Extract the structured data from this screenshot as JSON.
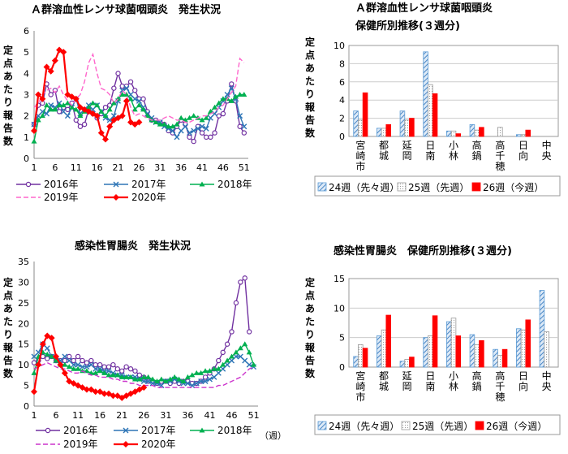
{
  "charts": [
    {
      "id": "strep_trend",
      "type": "line",
      "title": "Ａ群溶血性レンサ球菌咽頭炎　発生状況",
      "ylabel": "定点あたり報告数",
      "x_ticks": [
        1,
        6,
        11,
        16,
        21,
        26,
        31,
        36,
        41,
        46,
        51
      ],
      "xlim": [
        1,
        52
      ],
      "ylim": [
        0,
        6
      ],
      "y_ticks": [
        0,
        1,
        2,
        3,
        4,
        5,
        6
      ],
      "series": [
        {
          "name": "2016年",
          "color": "#7030a0",
          "marker": "circle-open",
          "values": [
            1.6,
            2.5,
            2.6,
            3.5,
            3.0,
            3.2,
            2.2,
            2.4,
            2.3,
            2.6,
            1.8,
            1.5,
            1.6,
            2.3,
            2.1,
            1.9,
            2.1,
            2.4,
            2.5,
            3.3,
            4.0,
            3.4,
            3.4,
            3.6,
            3.2,
            2.8,
            2.8,
            2.2,
            1.8,
            1.8,
            1.7,
            1.6,
            1.3,
            1.2,
            1.5,
            1.8,
            1.6,
            1.0,
            0.8,
            1.5,
            1.2,
            1.0,
            1.0,
            1.2,
            2.0,
            2.1,
            2.7,
            3.5,
            2.7,
            1.5,
            1.2
          ]
        },
        {
          "name": "2017年",
          "color": "#2e75b6",
          "marker": "x",
          "values": [
            1.6,
            2.0,
            2.2,
            2.1,
            2.5,
            2.4,
            2.6,
            2.2,
            2.0,
            2.4,
            2.8,
            2.1,
            2.3,
            2.5,
            2.3,
            2.5,
            2.2,
            1.9,
            1.8,
            2.0,
            2.7,
            3.2,
            3.3,
            3.0,
            2.8,
            2.7,
            2.4,
            2.1,
            1.9,
            1.7,
            1.7,
            1.5,
            1.4,
            1.3,
            1.0,
            1.3,
            1.5,
            1.2,
            1.3,
            1.4,
            1.5,
            1.4,
            1.9,
            2.1,
            2.4,
            2.7,
            3.0,
            3.3,
            2.8,
            2.0,
            1.5
          ]
        },
        {
          "name": "2018年",
          "color": "#00b050",
          "marker": "triangle",
          "values": [
            0.8,
            1.8,
            2.0,
            2.5,
            2.3,
            2.3,
            2.5,
            2.5,
            2.6,
            2.4,
            2.3,
            2.0,
            2.2,
            2.4,
            2.6,
            2.5,
            2.2,
            2.0,
            2.3,
            2.6,
            2.8,
            3.0,
            3.0,
            2.8,
            2.3,
            2.5,
            2.3,
            2.0,
            1.8,
            1.7,
            1.6,
            1.6,
            1.5,
            1.5,
            1.6,
            1.9,
            1.8,
            1.9,
            2.0,
            1.9,
            1.8,
            1.9,
            2.2,
            2.4,
            2.6,
            2.8,
            2.8,
            2.7,
            2.9,
            3.0,
            3.0
          ]
        },
        {
          "name": "2019年",
          "color": "#ff66cc",
          "marker": "dash",
          "values": [
            2.4,
            2.6,
            3.0,
            3.2,
            3.3,
            3.1,
            3.4,
            3.0,
            2.7,
            2.5,
            2.8,
            3.0,
            3.6,
            4.5,
            4.9,
            4.0,
            3.3,
            3.2,
            3.0,
            2.6,
            2.8,
            3.2,
            3.0,
            2.4,
            2.0,
            2.1,
            2.0,
            1.9,
            1.8,
            1.8,
            1.8,
            1.9,
            2.0,
            1.9,
            1.8,
            1.8,
            1.7,
            1.7,
            1.8,
            1.9,
            2.0,
            2.0,
            2.1,
            2.2,
            2.4,
            2.5,
            2.8,
            3.1,
            3.4,
            4.7,
            4.5
          ]
        },
        {
          "name": "2020年",
          "color": "#ff0000",
          "marker": "diamond",
          "values": [
            1.3,
            3.0,
            2.8,
            4.3,
            4.1,
            4.6,
            5.1,
            5.0,
            3.0,
            2.9,
            2.8,
            2.4,
            2.3,
            2.2,
            2.1,
            2.0,
            1.2,
            0.9,
            1.5,
            1.8,
            1.9,
            2.0,
            2.7,
            1.7,
            1.6,
            1.7
          ]
        }
      ]
    },
    {
      "id": "strep_bar",
      "type": "bar",
      "title": "Ａ群溶血性レンサ球菌咽頭炎",
      "subtitle": "保健所別推移(３週分)",
      "ylabel": "定点あたり報告数",
      "ylim": [
        0,
        10
      ],
      "y_ticks": [
        0,
        2,
        4,
        6,
        8,
        10
      ],
      "categories": [
        "宮崎市",
        "都城",
        "延岡",
        "日南",
        "小林",
        "高鍋",
        "高千穂",
        "日向",
        "中央"
      ],
      "series": [
        {
          "name": "24週（先々週）",
          "color": "#5b9bd5",
          "values": [
            2.8,
            0.9,
            2.8,
            9.3,
            0.6,
            1.3,
            0.0,
            0.2,
            0.0
          ]
        },
        {
          "name": "25週（先週）",
          "color": "#d9d9d9",
          "values": [
            1.8,
            0.9,
            1.8,
            5.7,
            0.6,
            0.7,
            1.0,
            0.2,
            0.0
          ]
        },
        {
          "name": "26週（今週）",
          "color": "#ff0000",
          "values": [
            4.8,
            1.3,
            2.0,
            4.7,
            0.3,
            1.0,
            0.0,
            0.7,
            0.0
          ]
        }
      ]
    },
    {
      "id": "gastro_trend",
      "type": "line",
      "title": "感染性胃腸炎　発生状況",
      "ylabel": "定点あたり報告数",
      "xunit": "（週）",
      "x_ticks": [
        1,
        6,
        11,
        16,
        21,
        26,
        31,
        36,
        41,
        46,
        51
      ],
      "xlim": [
        1,
        52
      ],
      "ylim": [
        0,
        35
      ],
      "y_ticks": [
        0,
        5,
        10,
        15,
        20,
        25,
        30,
        35
      ],
      "series": [
        {
          "name": "2016年",
          "color": "#7030a0",
          "marker": "circle-open",
          "values": [
            10.5,
            11,
            12,
            11.5,
            12,
            11,
            11,
            11,
            12,
            11,
            12,
            11,
            10.5,
            11,
            10,
            10,
            9.5,
            9.5,
            10,
            9,
            8.5,
            9.5,
            9,
            8.5,
            7.5,
            7,
            6,
            6,
            5.5,
            6,
            6,
            5.5,
            6,
            5.5,
            6,
            6,
            5.5,
            5.5,
            6,
            7,
            8,
            9,
            11,
            13,
            15,
            18,
            25,
            30,
            31,
            18
          ]
        },
        {
          "name": "2017年",
          "color": "#2e75b6",
          "marker": "x",
          "values": [
            12,
            13,
            15,
            14,
            12,
            11,
            11,
            12,
            11,
            10,
            10,
            9.5,
            9.5,
            10,
            9,
            9,
            8.5,
            8.5,
            8,
            7.5,
            7.5,
            7,
            7,
            7,
            6.5,
            6,
            6,
            5.5,
            5.5,
            5,
            6,
            6,
            6.5,
            6,
            5.5,
            5.5,
            5,
            5.5,
            6,
            6,
            6.5,
            7,
            8,
            9,
            10,
            11,
            12,
            12,
            11,
            10,
            9.5
          ]
        },
        {
          "name": "2018年",
          "color": "#00b050",
          "marker": "triangle",
          "values": [
            8,
            12,
            13,
            12.5,
            12,
            11,
            10,
            10,
            9.5,
            9,
            9,
            8.5,
            8.5,
            8,
            8,
            8.5,
            8,
            7.5,
            7.5,
            7.5,
            7,
            7,
            7,
            6.5,
            6.5,
            7,
            7,
            6.5,
            6,
            6.5,
            6,
            6.5,
            7,
            6.5,
            6,
            7,
            7.5,
            8,
            8,
            8.5,
            8.5,
            9,
            9,
            10,
            11,
            12,
            13,
            14,
            15,
            13,
            10
          ]
        },
        {
          "name": "2019年",
          "color": "#cc33cc",
          "marker": "dash",
          "values": [
            9,
            9.5,
            10,
            10.5,
            10,
            9.5,
            9,
            9,
            8.5,
            8,
            8,
            8.5,
            8,
            7.5,
            7.5,
            7,
            7,
            7,
            6.5,
            6.5,
            6,
            6,
            5.5,
            5.5,
            5,
            5,
            5,
            5,
            4.5,
            4.5,
            4.5,
            4.5,
            4.5,
            4.5,
            4.5,
            4.5,
            4.5,
            4.5,
            4.5,
            4.5,
            4.5,
            4.5,
            5,
            5,
            5.5,
            6,
            6.5,
            7,
            8,
            9,
            9.5
          ]
        },
        {
          "name": "2020年",
          "color": "#ff0000",
          "marker": "diamond",
          "values": [
            3.5,
            10,
            15,
            17,
            16.5,
            12,
            10,
            8,
            6,
            5.5,
            5,
            4.5,
            4,
            4,
            3.5,
            3.5,
            3,
            3,
            2.5,
            2.5,
            2,
            2.5,
            3,
            3.5,
            4,
            4.5
          ]
        }
      ]
    },
    {
      "id": "gastro_bar",
      "type": "bar",
      "title": "感染性胃腸炎　保健所別推移(３週分)",
      "ylabel": "定点あたり報告数",
      "ylim": [
        0,
        15
      ],
      "y_ticks": [
        0,
        5,
        10,
        15
      ],
      "categories": [
        "宮崎市",
        "都城",
        "延岡",
        "日南",
        "小林",
        "高鍋",
        "高千穂",
        "日向",
        "中央"
      ],
      "series": [
        {
          "name": "24週（先々週）",
          "color": "#5b9bd5",
          "values": [
            1.8,
            5.3,
            1.0,
            5.0,
            7.7,
            5.5,
            3.0,
            6.5,
            13.0
          ]
        },
        {
          "name": "25週（先週）",
          "color": "#d9d9d9",
          "values": [
            3.8,
            6.3,
            1.3,
            5.3,
            8.3,
            3.8,
            2.0,
            6.3,
            6.0
          ]
        },
        {
          "name": "26週（今週）",
          "color": "#ff0000",
          "values": [
            3.2,
            8.8,
            1.7,
            8.7,
            5.3,
            4.5,
            3.0,
            8.0,
            0.0
          ]
        }
      ]
    }
  ]
}
